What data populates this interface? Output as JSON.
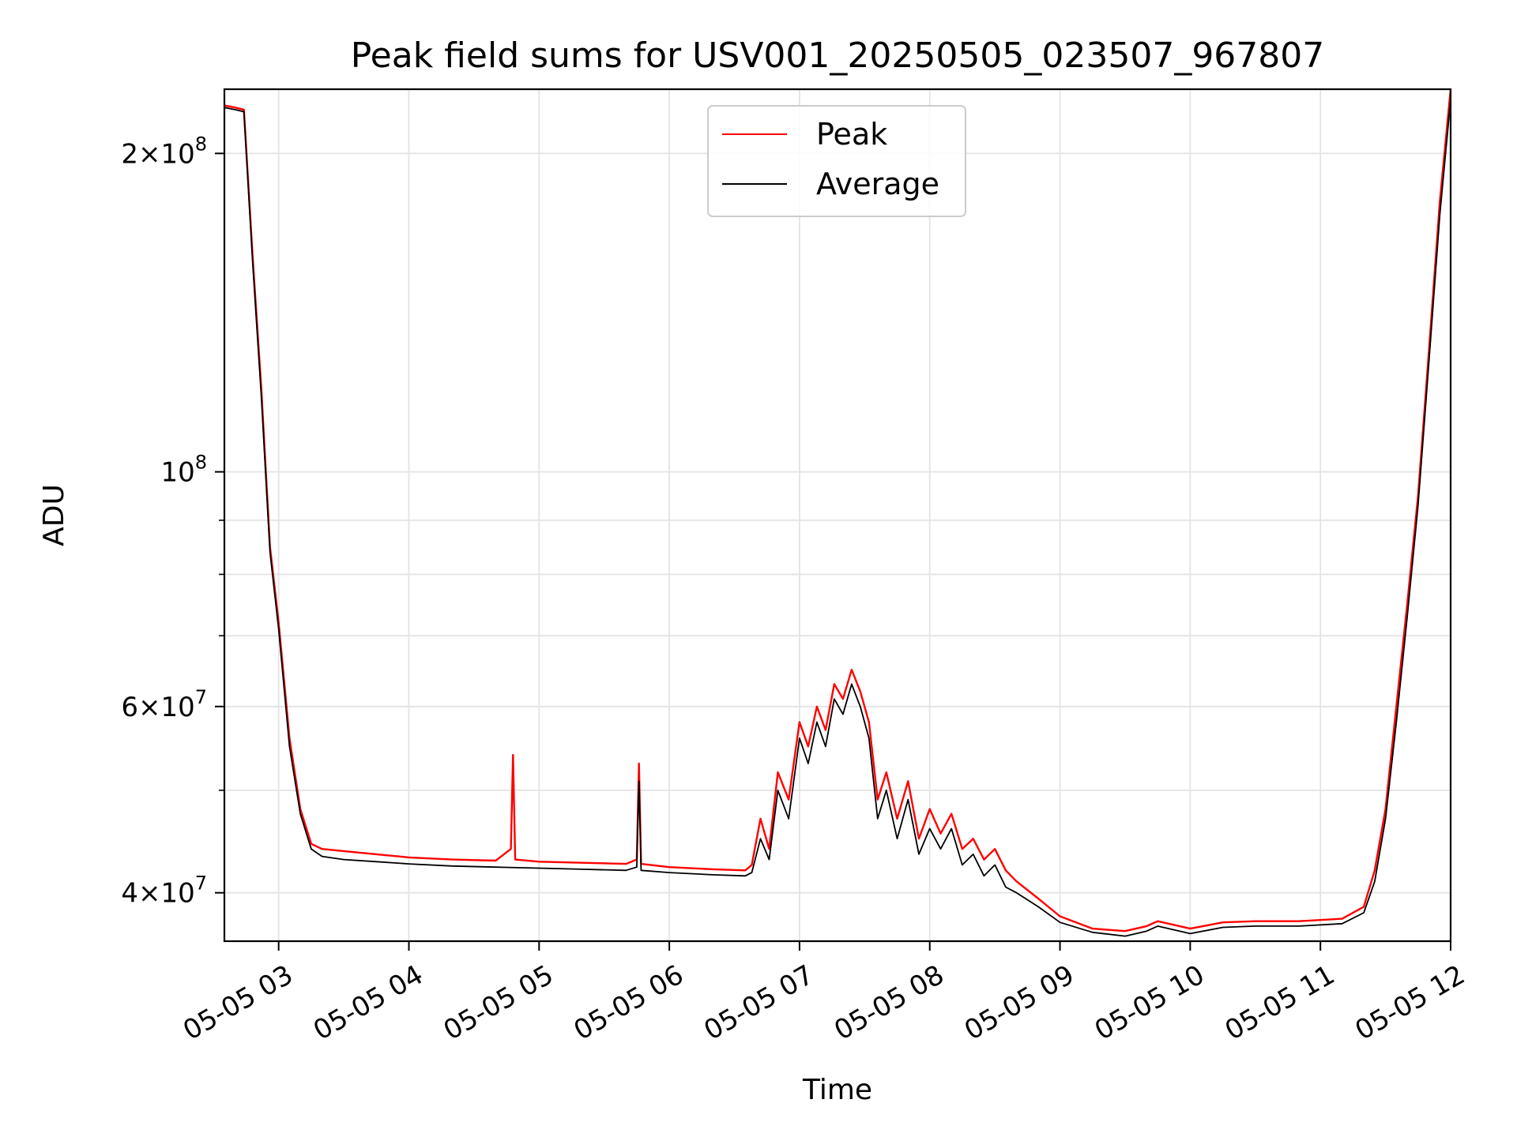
{
  "chart_data": {
    "type": "line",
    "title": "Peak field sums for USV001_20250505_023507_967807",
    "xlabel": "Time",
    "ylabel": "ADU",
    "y_scale": "log",
    "xlim": [
      "2025-05-05 02:35",
      "2025-05-05 12:00"
    ],
    "ylim": [
      36000000,
      230000000
    ],
    "x_ticks": [
      "05-05 03",
      "05-05 04",
      "05-05 05",
      "05-05 06",
      "05-05 07",
      "05-05 08",
      "05-05 09",
      "05-05 10",
      "05-05 11",
      "05-05 12"
    ],
    "x_tick_times": [
      "2025-05-05 03:00",
      "2025-05-05 04:00",
      "2025-05-05 05:00",
      "2025-05-05 06:00",
      "2025-05-05 07:00",
      "2025-05-05 08:00",
      "2025-05-05 09:00",
      "2025-05-05 10:00",
      "2025-05-05 11:00",
      "2025-05-05 12:00"
    ],
    "x_tick_rotation": 30,
    "y_ticks": [
      {
        "value": 200000000,
        "mantissa": "2",
        "exponent": "8"
      },
      {
        "value": 100000000,
        "mantissa": "",
        "exponent": "8"
      },
      {
        "value": 60000000,
        "mantissa": "6",
        "exponent": "7"
      },
      {
        "value": 40000000,
        "mantissa": "4",
        "exponent": "7"
      }
    ],
    "y_minor_ticks": [
      50000000,
      70000000,
      80000000,
      90000000
    ],
    "grid": true,
    "legend_position": "top-center",
    "series": [
      {
        "name": "Peak",
        "color": "#ff0000",
        "x": [
          "2025-05-05 02:35",
          "2025-05-05 02:40",
          "2025-05-05 02:44",
          "2025-05-05 02:48",
          "2025-05-05 02:52",
          "2025-05-05 02:56",
          "2025-05-05 03:00",
          "2025-05-05 03:05",
          "2025-05-05 03:10",
          "2025-05-05 03:15",
          "2025-05-05 03:20",
          "2025-05-05 03:30",
          "2025-05-05 03:45",
          "2025-05-05 04:00",
          "2025-05-05 04:20",
          "2025-05-05 04:40",
          "2025-05-05 04:47",
          "2025-05-05 04:48",
          "2025-05-05 04:49",
          "2025-05-05 05:00",
          "2025-05-05 05:20",
          "2025-05-05 05:40",
          "2025-05-05 05:45",
          "2025-05-05 05:46",
          "2025-05-05 05:47",
          "2025-05-05 06:00",
          "2025-05-05 06:20",
          "2025-05-05 06:35",
          "2025-05-05 06:38",
          "2025-05-05 06:42",
          "2025-05-05 06:46",
          "2025-05-05 06:50",
          "2025-05-05 06:55",
          "2025-05-05 07:00",
          "2025-05-05 07:04",
          "2025-05-05 07:08",
          "2025-05-05 07:12",
          "2025-05-05 07:16",
          "2025-05-05 07:20",
          "2025-05-05 07:24",
          "2025-05-05 07:28",
          "2025-05-05 07:32",
          "2025-05-05 07:36",
          "2025-05-05 07:40",
          "2025-05-05 07:45",
          "2025-05-05 07:50",
          "2025-05-05 07:55",
          "2025-05-05 08:00",
          "2025-05-05 08:05",
          "2025-05-05 08:10",
          "2025-05-05 08:15",
          "2025-05-05 08:20",
          "2025-05-05 08:25",
          "2025-05-05 08:30",
          "2025-05-05 08:35",
          "2025-05-05 08:40",
          "2025-05-05 08:50",
          "2025-05-05 09:00",
          "2025-05-05 09:15",
          "2025-05-05 09:30",
          "2025-05-05 09:40",
          "2025-05-05 09:45",
          "2025-05-05 10:00",
          "2025-05-05 10:15",
          "2025-05-05 10:30",
          "2025-05-05 10:50",
          "2025-05-05 11:10",
          "2025-05-05 11:20",
          "2025-05-05 11:25",
          "2025-05-05 11:30",
          "2025-05-05 11:35",
          "2025-05-05 11:40",
          "2025-05-05 11:45",
          "2025-05-05 11:50",
          "2025-05-05 11:55",
          "2025-05-05 12:00"
        ],
        "values": [
          222000000,
          221000000,
          220000000,
          160000000,
          120000000,
          85000000,
          72000000,
          56000000,
          48000000,
          44500000,
          44000000,
          43800000,
          43500000,
          43200000,
          43000000,
          42900000,
          44000000,
          54000000,
          43000000,
          42800000,
          42700000,
          42600000,
          43000000,
          53000000,
          42600000,
          42300000,
          42100000,
          42000000,
          42500000,
          47000000,
          44000000,
          52000000,
          49000000,
          58000000,
          55000000,
          60000000,
          57000000,
          63000000,
          61000000,
          65000000,
          62000000,
          58000000,
          49000000,
          52000000,
          47000000,
          51000000,
          45000000,
          48000000,
          45500000,
          47500000,
          44000000,
          45000000,
          43000000,
          44000000,
          42000000,
          41000000,
          39500000,
          38000000,
          37000000,
          36800000,
          37200000,
          37600000,
          37000000,
          37500000,
          37600000,
          37600000,
          37800000,
          38800000,
          42000000,
          48000000,
          60000000,
          75000000,
          95000000,
          130000000,
          180000000,
          230000000
        ]
      },
      {
        "name": "Average",
        "color": "#000000",
        "x": [
          "2025-05-05 02:35",
          "2025-05-05 02:40",
          "2025-05-05 02:44",
          "2025-05-05 02:48",
          "2025-05-05 02:52",
          "2025-05-05 02:56",
          "2025-05-05 03:00",
          "2025-05-05 03:05",
          "2025-05-05 03:10",
          "2025-05-05 03:15",
          "2025-05-05 03:20",
          "2025-05-05 03:30",
          "2025-05-05 03:45",
          "2025-05-05 04:00",
          "2025-05-05 04:20",
          "2025-05-05 04:40",
          "2025-05-05 05:00",
          "2025-05-05 05:20",
          "2025-05-05 05:40",
          "2025-05-05 05:45",
          "2025-05-05 05:46",
          "2025-05-05 05:47",
          "2025-05-05 06:00",
          "2025-05-05 06:20",
          "2025-05-05 06:35",
          "2025-05-05 06:38",
          "2025-05-05 06:42",
          "2025-05-05 06:46",
          "2025-05-05 06:50",
          "2025-05-05 06:55",
          "2025-05-05 07:00",
          "2025-05-05 07:04",
          "2025-05-05 07:08",
          "2025-05-05 07:12",
          "2025-05-05 07:16",
          "2025-05-05 07:20",
          "2025-05-05 07:24",
          "2025-05-05 07:28",
          "2025-05-05 07:32",
          "2025-05-05 07:36",
          "2025-05-05 07:40",
          "2025-05-05 07:45",
          "2025-05-05 07:50",
          "2025-05-05 07:55",
          "2025-05-05 08:00",
          "2025-05-05 08:05",
          "2025-05-05 08:10",
          "2025-05-05 08:15",
          "2025-05-05 08:20",
          "2025-05-05 08:25",
          "2025-05-05 08:30",
          "2025-05-05 08:35",
          "2025-05-05 08:40",
          "2025-05-05 08:50",
          "2025-05-05 09:00",
          "2025-05-05 09:15",
          "2025-05-05 09:30",
          "2025-05-05 09:40",
          "2025-05-05 09:45",
          "2025-05-05 10:00",
          "2025-05-05 10:15",
          "2025-05-05 10:30",
          "2025-05-05 10:50",
          "2025-05-05 11:10",
          "2025-05-05 11:20",
          "2025-05-05 11:25",
          "2025-05-05 11:30",
          "2025-05-05 11:35",
          "2025-05-05 11:40",
          "2025-05-05 11:45",
          "2025-05-05 11:50",
          "2025-05-05 11:55",
          "2025-05-05 12:00"
        ],
        "values": [
          221000000,
          220000000,
          219000000,
          158000000,
          118000000,
          84000000,
          71000000,
          55000000,
          47500000,
          44000000,
          43300000,
          43000000,
          42800000,
          42600000,
          42400000,
          42300000,
          42200000,
          42100000,
          42000000,
          42300000,
          51000000,
          42000000,
          41800000,
          41600000,
          41500000,
          41800000,
          45000000,
          43000000,
          50000000,
          47000000,
          56000000,
          53000000,
          58000000,
          55000000,
          61000000,
          59000000,
          63000000,
          60000000,
          56000000,
          47000000,
          50000000,
          45000000,
          49000000,
          43500000,
          46000000,
          44000000,
          46000000,
          42500000,
          43500000,
          41500000,
          42500000,
          40500000,
          40000000,
          38800000,
          37500000,
          36700000,
          36400000,
          36800000,
          37200000,
          36600000,
          37100000,
          37200000,
          37200000,
          37400000,
          38300000,
          41000000,
          47000000,
          58000000,
          73000000,
          93000000,
          127000000,
          175000000,
          225000000
        ]
      }
    ]
  }
}
